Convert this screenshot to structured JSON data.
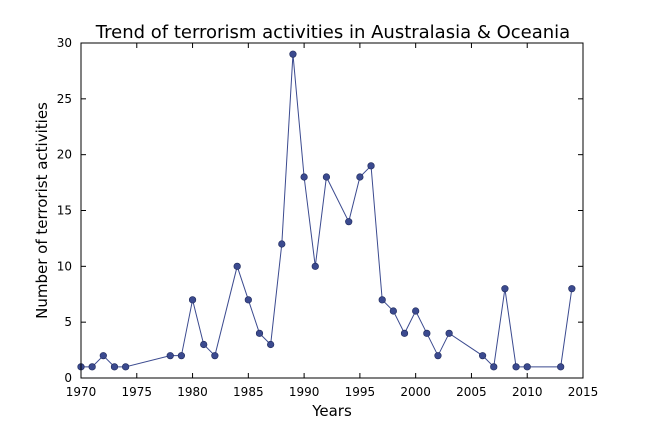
{
  "chart_data": {
    "type": "line",
    "title": "Trend of terrorism activities in Australasia & Oceania",
    "xlabel": "Years",
    "ylabel": "Number of terrorist activities",
    "xlim": [
      1970,
      2015
    ],
    "ylim": [
      0,
      30
    ],
    "x_ticks": [
      "1970",
      "1975",
      "1980",
      "1985",
      "1990",
      "1995",
      "2000",
      "2005",
      "2010",
      "2015"
    ],
    "y_ticks": [
      "0",
      "5",
      "10",
      "15",
      "20",
      "25",
      "30"
    ],
    "grid": false,
    "series": [
      {
        "color": "#3b4a8f",
        "x": [
          1970,
          1971,
          1972,
          1973,
          1974,
          1978,
          1979,
          1980,
          1981,
          1982,
          1984,
          1985,
          1986,
          1987,
          1988,
          1989,
          1990,
          1991,
          1992,
          1994,
          1995,
          1996,
          1997,
          1998,
          1999,
          2000,
          2001,
          2002,
          2003,
          2006,
          2007,
          2008,
          2009,
          2010,
          2013,
          2014
        ],
        "values": [
          1,
          1,
          2,
          1,
          1,
          2,
          2,
          7,
          3,
          2,
          10,
          7,
          4,
          3,
          12,
          29,
          18,
          10,
          18,
          14,
          18,
          19,
          7,
          6,
          4,
          6,
          4,
          2,
          4,
          2,
          1,
          8,
          1,
          1,
          1,
          8
        ]
      }
    ]
  }
}
